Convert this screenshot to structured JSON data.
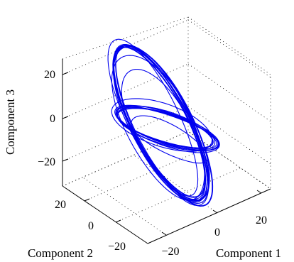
{
  "chart_data": {
    "type": "line3d",
    "title": "",
    "xlabel": "Component 1",
    "ylabel": "Component 2",
    "zlabel": "Component 3",
    "x_ticks": [
      "−20",
      "0",
      "20"
    ],
    "y_ticks": [
      "−20",
      "0",
      "20"
    ],
    "z_ticks": [
      "−20",
      "0",
      "20"
    ],
    "xlim": [
      -30,
      30
    ],
    "ylim": [
      -30,
      30
    ],
    "zlim": [
      -30,
      30
    ],
    "grid": true,
    "line_color": "#0000ee",
    "series": [
      {
        "orbits": [
          {
            "x": [
              -2,
              -10,
              -18,
              -22,
              -20,
              -12,
              -2,
              8,
              16,
              22,
              20,
              10,
              -2
            ],
            "y": [
              -4,
              4,
              12,
              18,
              20,
              14,
              4,
              -6,
              -14,
              -18,
              -16,
              -10,
              -4
            ],
            "z": [
              28,
              27,
              24,
              16,
              6,
              -4,
              -14,
              -22,
              -26,
              -24,
              -14,
              6,
              28
            ]
          },
          {
            "x": [
              -12,
              -2,
              8,
              14,
              10,
              0,
              -10,
              -14,
              -12
            ],
            "y": [
              6,
              0,
              -6,
              -10,
              -6,
              2,
              8,
              10,
              6
            ],
            "z": [
              4,
              2,
              -2,
              -8,
              -12,
              -10,
              -4,
              2,
              4
            ]
          }
        ]
      }
    ]
  }
}
